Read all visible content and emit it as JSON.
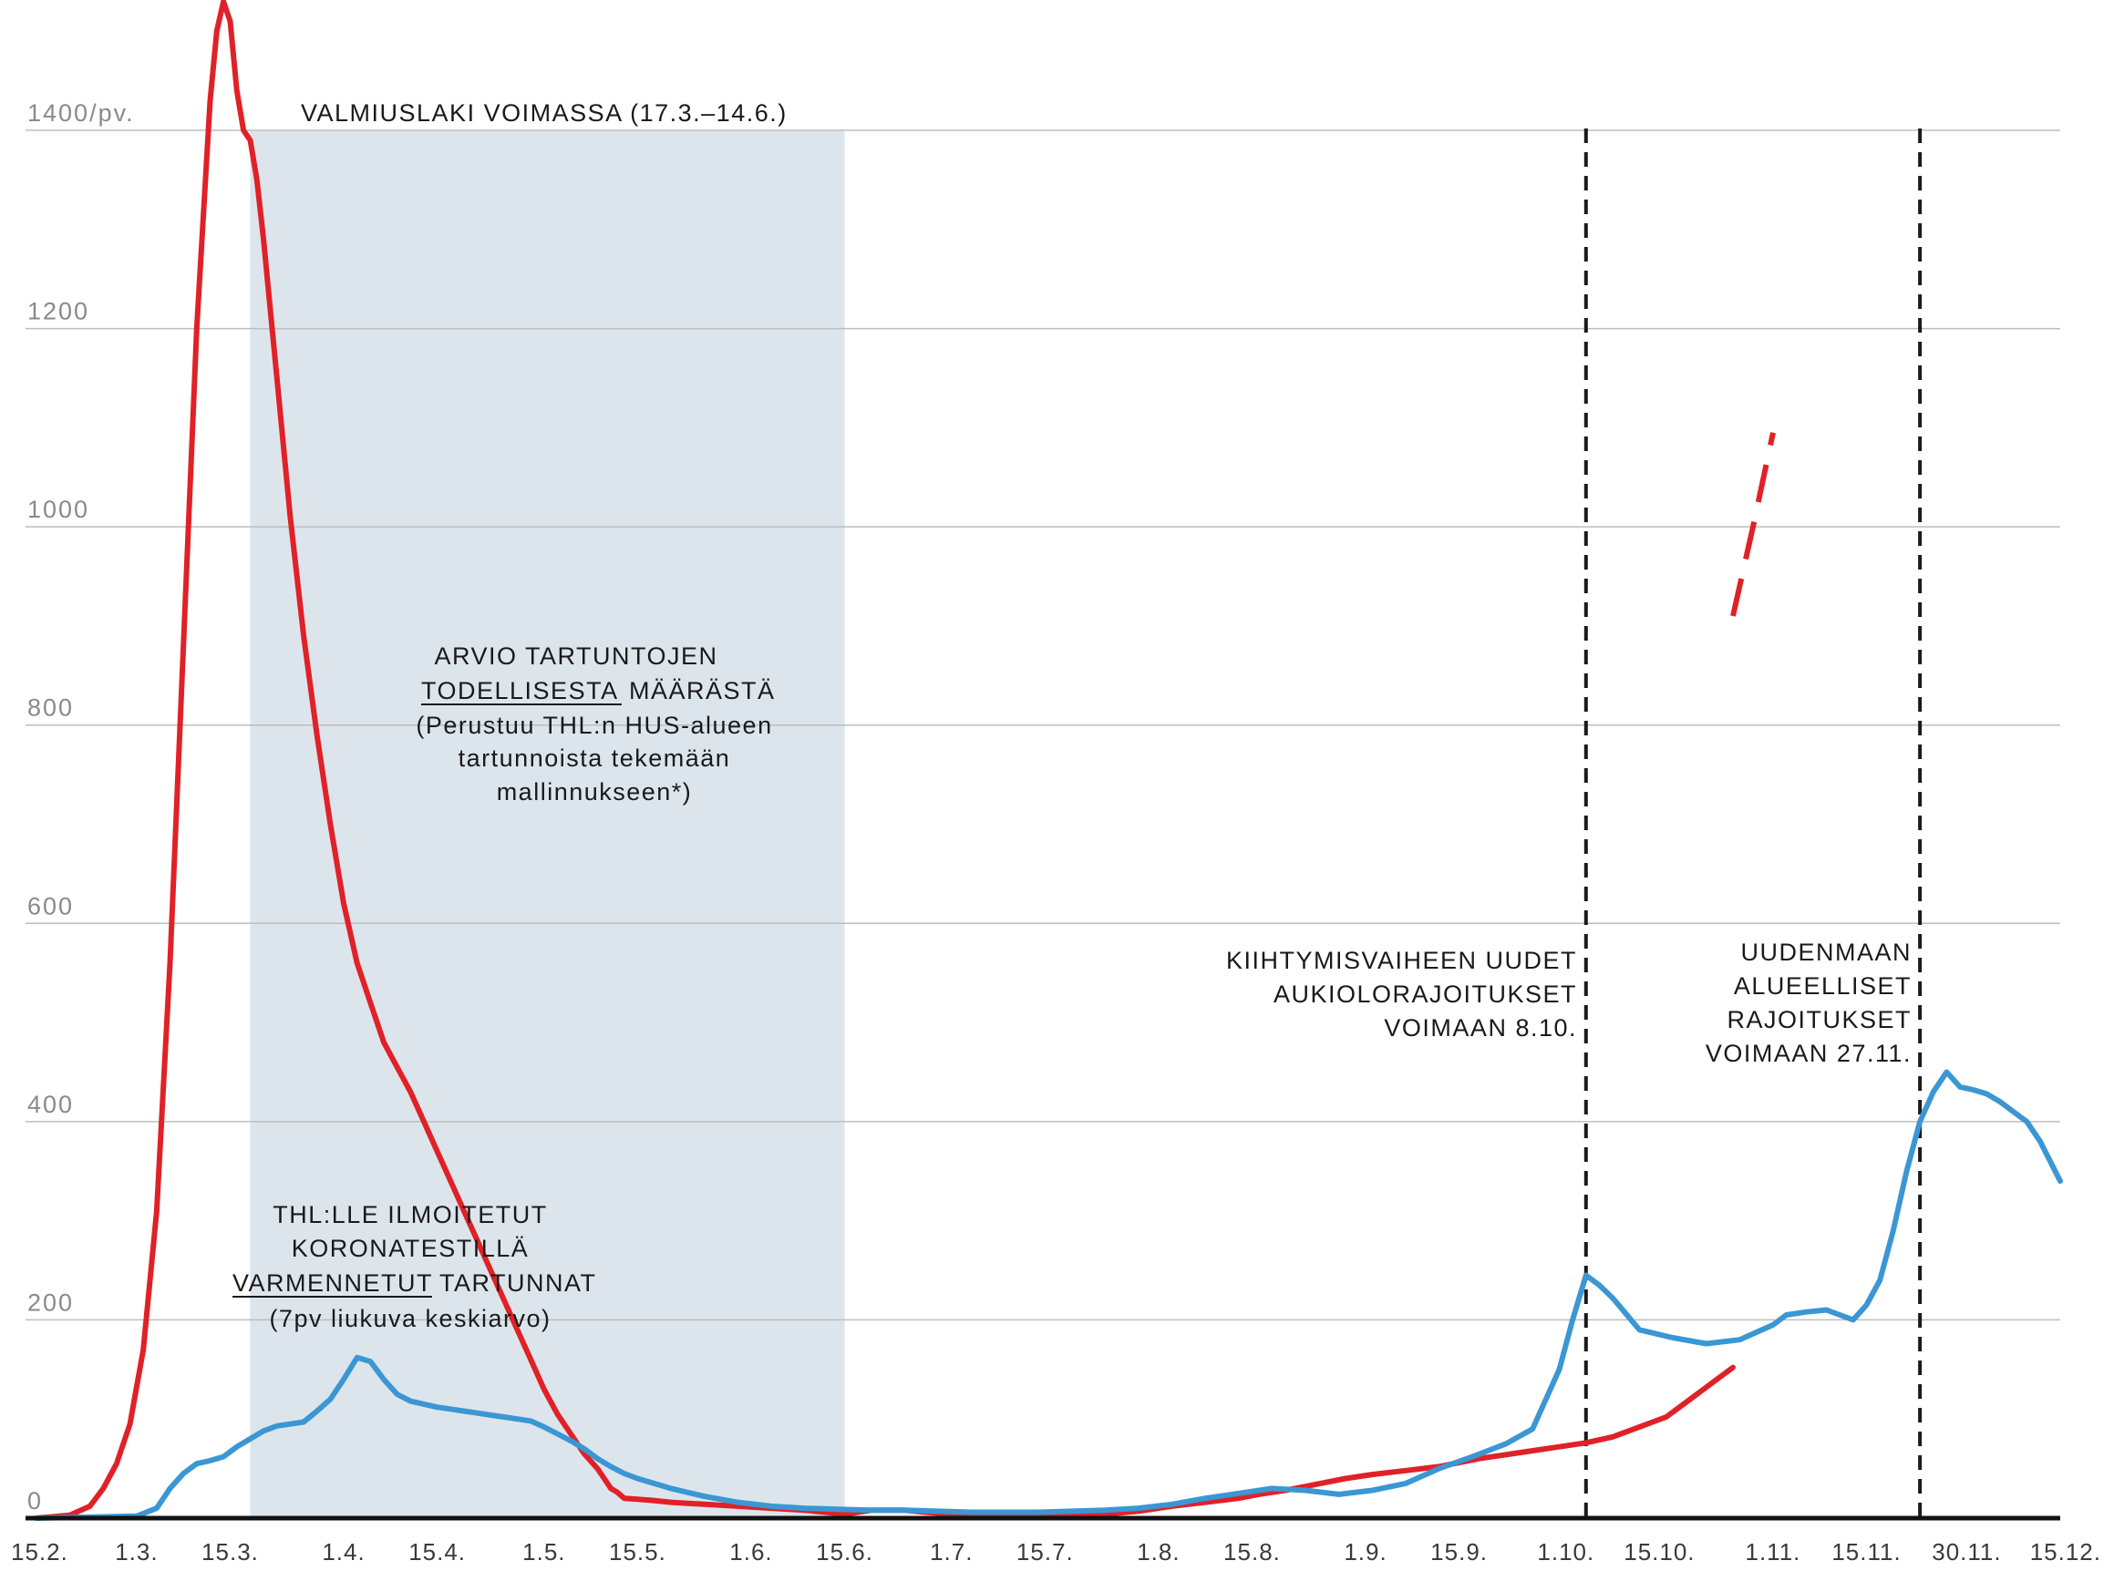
{
  "chart_data": {
    "type": "line",
    "ylim": [
      0,
      1500
    ],
    "y_ticks": [
      "0",
      "200",
      "400",
      "600",
      "800",
      "1000",
      "1200",
      "1400/pv."
    ],
    "y_tick_values": [
      0,
      200,
      400,
      600,
      800,
      1000,
      1200,
      1400
    ],
    "x_tick_labels": [
      "15.2.",
      "1.3.",
      "15.3.",
      "1.4.",
      "15.4.",
      "1.5.",
      "15.5.",
      "1.6.",
      "15.6.",
      "1.7.",
      "15.7.",
      "1.8.",
      "15.8.",
      "1.9.",
      "15.9.",
      "1.10.",
      "15.10.",
      "1.11.",
      "15.11.",
      "30.11.",
      "15.12."
    ],
    "x_tick_days": [
      0,
      15,
      29,
      46,
      60,
      76,
      90,
      107,
      121,
      137,
      151,
      168,
      182,
      199,
      213,
      229,
      243,
      260,
      274,
      289,
      303
    ],
    "grid": true,
    "shaded_period": {
      "start_day": 32,
      "end_day": 121,
      "label": "VALMIUSLAKI VOIMASSA (17.3.–14.6.)",
      "color": "#dde5ec"
    },
    "vlines": [
      {
        "day": 232,
        "label_lines": [
          "KIIHTYMISVAIHEEN UUDET",
          "AUKIOLORAJOITUKSET",
          "VOIMAAN 8.10."
        ]
      },
      {
        "day": 282,
        "label_lines": [
          "UUDENMAAN",
          "ALUEELLISET",
          "RAJOITUKSET",
          "VOIMAAN 27.11."
        ]
      }
    ],
    "series": [
      {
        "color": "#e02127",
        "x": [
          0,
          5,
          8,
          10,
          12,
          14,
          16,
          18,
          20,
          22,
          24,
          26,
          27,
          28,
          29,
          30,
          31,
          32,
          33,
          34,
          35,
          36,
          38,
          40,
          42,
          44,
          46,
          48,
          50,
          52,
          54,
          56,
          58,
          60,
          62,
          64,
          66,
          68,
          70,
          72,
          74,
          76,
          78,
          80,
          82,
          84,
          85,
          86,
          87,
          88,
          90,
          92,
          95,
          100,
          105,
          110,
          115,
          118,
          121,
          123,
          125,
          130,
          133,
          137,
          140,
          145,
          150,
          155,
          160,
          165,
          170,
          175,
          180,
          183,
          187,
          190,
          193,
          196,
          200,
          205,
          210,
          213,
          216,
          220,
          224,
          228,
          232,
          236,
          240,
          244,
          246,
          248,
          250,
          252,
          254
        ],
        "values": [
          0,
          3,
          12,
          30,
          55,
          95,
          170,
          310,
          560,
          880,
          1200,
          1430,
          1500,
          1530,
          1510,
          1440,
          1400,
          1390,
          1350,
          1290,
          1220,
          1150,
          1010,
          890,
          790,
          700,
          620,
          560,
          520,
          480,
          455,
          430,
          400,
          370,
          340,
          310,
          280,
          250,
          220,
          190,
          160,
          130,
          105,
          85,
          65,
          50,
          40,
          30,
          26,
          20,
          19,
          18,
          16,
          14,
          12,
          10,
          8,
          6,
          4,
          6,
          8,
          8,
          6,
          4,
          2,
          2,
          2,
          2,
          4,
          7,
          12,
          16,
          20,
          24,
          28,
          32,
          36,
          40,
          44,
          48,
          52,
          56,
          60,
          64,
          68,
          72,
          76,
          82,
          92,
          102,
          112,
          122,
          132,
          142,
          152
        ]
      },
      {
        "color": "#e02127",
        "style": "dashed",
        "x": [
          254,
          257,
          260
        ],
        "values": [
          910,
          1000,
          1095
        ]
      },
      {
        "color": "#3b97d3",
        "x": [
          0,
          15,
          18,
          20,
          22,
          24,
          26,
          28,
          30,
          32,
          34,
          36,
          38,
          40,
          42,
          44,
          46,
          48,
          49,
          50,
          52,
          54,
          56,
          58,
          60,
          62,
          64,
          66,
          68,
          70,
          72,
          74,
          76,
          78,
          80,
          82,
          84,
          86,
          88,
          90,
          95,
          100,
          105,
          110,
          115,
          120,
          125,
          130,
          135,
          140,
          145,
          150,
          155,
          160,
          165,
          170,
          175,
          180,
          185,
          190,
          195,
          200,
          205,
          210,
          215,
          220,
          224,
          228,
          230,
          232,
          234,
          236,
          240,
          245,
          250,
          255,
          260,
          262,
          265,
          268,
          270,
          272,
          274,
          276,
          278,
          280,
          282,
          284,
          286,
          288,
          290,
          292,
          294,
          296,
          298,
          300,
          303
        ],
        "values": [
          0,
          2,
          10,
          30,
          45,
          55,
          58,
          62,
          72,
          80,
          88,
          93,
          95,
          97,
          108,
          120,
          140,
          162,
          160,
          158,
          140,
          125,
          118,
          115,
          112,
          110,
          108,
          106,
          104,
          102,
          100,
          98,
          92,
          85,
          78,
          70,
          60,
          52,
          45,
          40,
          30,
          22,
          16,
          12,
          10,
          9,
          8,
          8,
          7,
          6,
          6,
          6,
          7,
          8,
          10,
          14,
          20,
          25,
          30,
          28,
          24,
          28,
          35,
          50,
          62,
          75,
          90,
          150,
          200,
          245,
          235,
          222,
          190,
          182,
          176,
          180,
          195,
          205,
          208,
          210,
          205,
          200,
          215,
          240,
          290,
          350,
          400,
          430,
          450,
          435,
          432,
          428,
          420,
          410,
          400,
          380,
          340
        ]
      }
    ],
    "annotations": {
      "estimate_lines": [
        "ARVIO TARTUNTOJEN",
        "TODELLISESTA",
        "MÄÄRÄSTÄ",
        "(Perustuu THL:n HUS-alueen",
        "tartunnoista tekemään",
        "mallinnukseen*)"
      ],
      "confirmed_lines": [
        "THL:LLE ILMOITETUT",
        "KORONATESTILLÄ",
        "VARMENNETUT",
        "TARTUNNAT",
        "(7pv  liukuva keskiarvo)"
      ]
    }
  }
}
